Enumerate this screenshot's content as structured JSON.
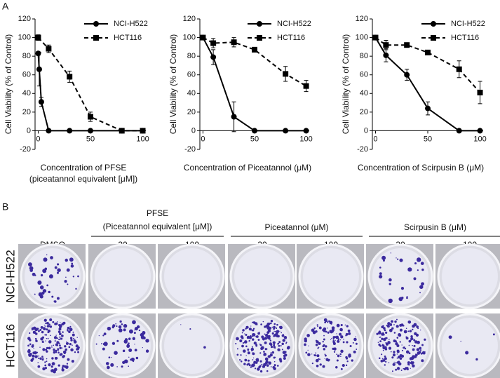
{
  "chart_data": [
    {
      "type": "line",
      "panel": "A",
      "ylabel": "Cell Viability (% of Control)",
      "xlabel": [
        "Concentration of PFSE",
        "(piceatannol equivalent [μM])"
      ],
      "xlim": [
        -3,
        103
      ],
      "xticks": [
        0,
        50,
        100
      ],
      "ylim": [
        -20,
        120
      ],
      "yticks": [
        -20,
        0,
        20,
        40,
        60,
        80,
        100,
        120
      ],
      "series": [
        {
          "name": "NCI-H522",
          "color": "#000000",
          "dash": false,
          "marker": "circle",
          "x": [
            0,
            1,
            3,
            10,
            30,
            50,
            80,
            100
          ],
          "values": [
            83,
            66,
            31,
            0,
            0,
            0,
            0,
            0
          ],
          "errors": [
            2,
            18,
            5,
            0,
            0,
            0,
            0,
            0
          ]
        },
        {
          "name": "HCT116",
          "color": "#000000",
          "dash": true,
          "marker": "square",
          "x": [
            0,
            10,
            30,
            50,
            80,
            100
          ],
          "values": [
            100,
            88,
            58,
            15,
            0,
            0
          ],
          "errors": [
            3,
            4,
            6,
            5,
            0,
            0
          ]
        }
      ]
    },
    {
      "type": "line",
      "ylabel": "Cell Viability (% of Control)",
      "xlabel": [
        "Concentration of Piceatannol (μM)"
      ],
      "xlim": [
        -3,
        103
      ],
      "xticks": [
        0,
        50,
        100
      ],
      "ylim": [
        -20,
        120
      ],
      "yticks": [
        -20,
        0,
        20,
        40,
        60,
        80,
        100,
        120
      ],
      "series": [
        {
          "name": "NCI-H522",
          "color": "#000000",
          "dash": false,
          "marker": "circle",
          "x": [
            0,
            10,
            30,
            50,
            80,
            100
          ],
          "values": [
            100,
            79,
            15,
            0,
            0,
            0
          ],
          "errors": [
            0,
            8,
            16,
            0,
            0,
            0
          ]
        },
        {
          "name": "HCT116",
          "color": "#000000",
          "dash": true,
          "marker": "square",
          "x": [
            0,
            10,
            30,
            50,
            80,
            100
          ],
          "values": [
            100,
            94,
            95,
            87,
            61,
            48
          ],
          "errors": [
            0,
            5,
            5,
            2,
            8,
            6
          ]
        }
      ]
    },
    {
      "type": "line",
      "ylabel": "Cell Viability (% of Control)",
      "xlabel": [
        "Concentration of Scirpusin B (μM)"
      ],
      "xlim": [
        -3,
        103
      ],
      "xticks": [
        0,
        50,
        100
      ],
      "ylim": [
        -20,
        120
      ],
      "yticks": [
        -20,
        0,
        20,
        40,
        60,
        80,
        100,
        120
      ],
      "series": [
        {
          "name": "NCI-H522",
          "color": "#000000",
          "dash": false,
          "marker": "circle",
          "x": [
            0,
            10,
            30,
            50,
            80,
            100
          ],
          "values": [
            100,
            81,
            60,
            24,
            0,
            0
          ],
          "errors": [
            0,
            7,
            6,
            7,
            0,
            0
          ]
        },
        {
          "name": "HCT116",
          "color": "#000000",
          "dash": true,
          "marker": "square",
          "x": [
            0,
            10,
            30,
            50,
            80,
            100
          ],
          "values": [
            100,
            92,
            92,
            84,
            66,
            41
          ],
          "errors": [
            0,
            5,
            2,
            2,
            9,
            12
          ]
        }
      ]
    }
  ],
  "panel_b": {
    "panel": "B",
    "groups": [
      [
        "PFSE",
        "(Piceatannol equivalent [μM])"
      ],
      [
        "Piceatannol (μM)"
      ],
      [
        "Scirpusin B (μM)"
      ]
    ],
    "columns": [
      "DMSO",
      "30",
      "100",
      "30",
      "100",
      "30",
      "100"
    ],
    "rows": [
      "NCI-H522",
      "HCT116"
    ]
  }
}
